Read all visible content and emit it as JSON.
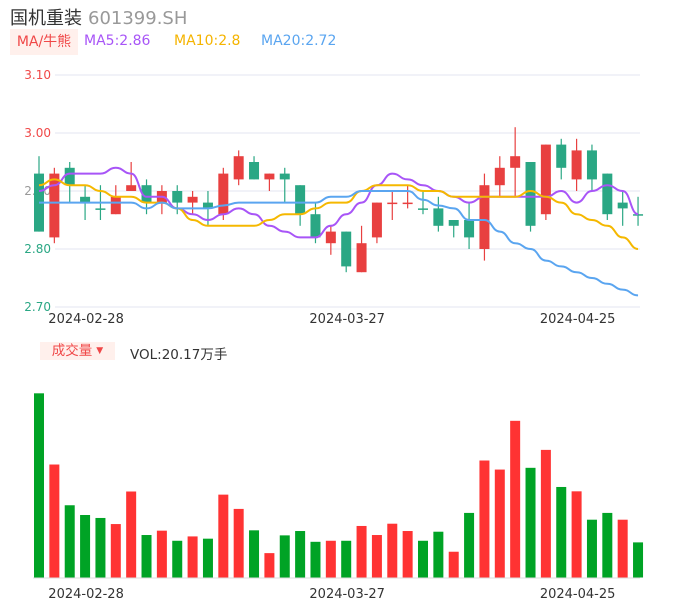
{
  "header": {
    "name": "国机重装",
    "code": "601399.SH"
  },
  "ma_bar": {
    "toggle_label": "MA/牛熊",
    "ma5": "MA5:2.86",
    "ma10": "MA10:2.8",
    "ma20": "MA20:2.72"
  },
  "volume_bar": {
    "toggle_label": "成交量",
    "vol_text": "VOL:20.17万手"
  },
  "colors": {
    "up": "#e84040",
    "down": "#2aa784",
    "vol_up": "#ff3333",
    "vol_down": "#00a325",
    "ma5": "#a855f7",
    "ma10": "#f5b800",
    "ma20": "#5aa5f0",
    "grid": "#e3e6f0"
  },
  "chart_data": [
    {
      "type": "candlestick",
      "y_ticks": [
        {
          "label": "3.10",
          "value": 3.1,
          "color": "#f04848"
        },
        {
          "label": "3.00",
          "value": 3.0,
          "color": "#f04848"
        },
        {
          "label": "2.90",
          "value": 2.9,
          "color": "#999999"
        },
        {
          "label": "2.80",
          "value": 2.8,
          "color": "#2aa784"
        },
        {
          "label": "2.70",
          "value": 2.7,
          "color": "#2aa784"
        }
      ],
      "ylim": [
        2.7,
        3.1
      ],
      "x_ticks": [
        {
          "label": "2024-02-28",
          "index": 3
        },
        {
          "label": "2024-03-27",
          "index": 20
        },
        {
          "label": "2024-04-25",
          "index": 35
        }
      ],
      "candles": [
        [
          2.93,
          2.83,
          2.96,
          2.83
        ],
        [
          2.82,
          2.93,
          2.94,
          2.81
        ],
        [
          2.94,
          2.91,
          2.95,
          2.88
        ],
        [
          2.89,
          2.88,
          2.91,
          2.85
        ],
        [
          2.87,
          2.87,
          2.91,
          2.85
        ],
        [
          2.86,
          2.89,
          2.91,
          2.86
        ],
        [
          2.9,
          2.91,
          2.95,
          2.9
        ],
        [
          2.91,
          2.88,
          2.92,
          2.86
        ],
        [
          2.88,
          2.9,
          2.91,
          2.86
        ],
        [
          2.9,
          2.88,
          2.91,
          2.86
        ],
        [
          2.88,
          2.89,
          2.9,
          2.86
        ],
        [
          2.88,
          2.87,
          2.9,
          2.84
        ],
        [
          2.86,
          2.93,
          2.94,
          2.85
        ],
        [
          2.92,
          2.96,
          2.97,
          2.91
        ],
        [
          2.95,
          2.92,
          2.96,
          2.92
        ],
        [
          2.92,
          2.93,
          2.93,
          2.9
        ],
        [
          2.93,
          2.92,
          2.94,
          2.88
        ],
        [
          2.91,
          2.86,
          2.91,
          2.84
        ],
        [
          2.86,
          2.82,
          2.88,
          2.81
        ],
        [
          2.81,
          2.83,
          2.84,
          2.79
        ],
        [
          2.83,
          2.77,
          2.83,
          2.76
        ],
        [
          2.76,
          2.81,
          2.84,
          2.76
        ],
        [
          2.82,
          2.88,
          2.88,
          2.81
        ],
        [
          2.88,
          2.88,
          2.9,
          2.85
        ],
        [
          2.88,
          2.88,
          2.91,
          2.87
        ],
        [
          2.87,
          2.87,
          2.9,
          2.86
        ],
        [
          2.87,
          2.84,
          2.89,
          2.83
        ],
        [
          2.85,
          2.84,
          2.85,
          2.82
        ],
        [
          2.85,
          2.82,
          2.88,
          2.8
        ],
        [
          2.8,
          2.91,
          2.93,
          2.78
        ],
        [
          2.91,
          2.94,
          2.96,
          2.89
        ],
        [
          2.94,
          2.96,
          3.01,
          2.89
        ],
        [
          2.95,
          2.84,
          2.95,
          2.83
        ],
        [
          2.86,
          2.98,
          2.98,
          2.85
        ],
        [
          2.98,
          2.94,
          2.99,
          2.92
        ],
        [
          2.92,
          2.97,
          2.99,
          2.9
        ],
        [
          2.97,
          2.92,
          2.98,
          2.9
        ],
        [
          2.93,
          2.86,
          2.93,
          2.85
        ],
        [
          2.88,
          2.87,
          2.9,
          2.84
        ],
        [
          2.86,
          2.86,
          2.89,
          2.84
        ]
      ],
      "ma5": [
        2.9,
        2.91,
        2.93,
        2.93,
        2.93,
        2.94,
        2.93,
        2.89,
        2.89,
        2.87,
        2.86,
        2.85,
        2.86,
        2.87,
        2.86,
        2.84,
        2.83,
        2.82,
        2.82,
        2.84,
        2.86,
        2.88,
        2.91,
        2.93,
        2.92,
        2.91,
        2.9,
        2.89,
        2.88,
        2.89,
        2.89,
        2.89,
        2.89,
        2.89,
        2.9,
        2.88,
        2.9,
        2.91,
        2.9,
        2.86
      ],
      "ma10": [
        2.91,
        2.92,
        2.91,
        2.91,
        2.9,
        2.89,
        2.89,
        2.88,
        2.88,
        2.87,
        2.85,
        2.84,
        2.84,
        2.84,
        2.84,
        2.85,
        2.86,
        2.86,
        2.87,
        2.88,
        2.88,
        2.9,
        2.91,
        2.91,
        2.91,
        2.9,
        2.9,
        2.89,
        2.89,
        2.89,
        2.89,
        2.89,
        2.9,
        2.89,
        2.88,
        2.86,
        2.85,
        2.84,
        2.82,
        2.8
      ],
      "ma20": [
        2.88,
        2.88,
        2.88,
        2.88,
        2.88,
        2.88,
        2.88,
        2.87,
        2.88,
        2.87,
        2.87,
        2.87,
        2.875,
        2.88,
        2.88,
        2.88,
        2.88,
        2.88,
        2.88,
        2.89,
        2.89,
        2.9,
        2.9,
        2.9,
        2.9,
        2.885,
        2.875,
        2.87,
        2.85,
        2.85,
        2.83,
        2.81,
        2.8,
        2.78,
        2.77,
        2.76,
        2.75,
        2.74,
        2.73,
        2.72
      ]
    },
    {
      "type": "bar",
      "unit": "万手",
      "ylim": [
        0,
        110
      ],
      "values": [
        105.8,
        64.9,
        41.5,
        35.9,
        34.2,
        30.7,
        49.4,
        24.4,
        26.9,
        21.1,
        23.6,
        22.3,
        47.6,
        39.4,
        27.1,
        14.0,
        24.2,
        26.7,
        20.5,
        21.1,
        21.1,
        29.6,
        24.4,
        30.9,
        26.7,
        21.1,
        26.3,
        14.8,
        37.1,
        67.2,
        62.0,
        90.0,
        63.0,
        73.3,
        52.0,
        49.5,
        33.2,
        37.1,
        33.2,
        20.17
      ],
      "up": [
        0,
        1,
        0,
        0,
        0,
        1,
        1,
        0,
        1,
        0,
        1,
        0,
        1,
        1,
        0,
        1,
        0,
        0,
        0,
        1,
        0,
        1,
        1,
        1,
        1,
        0,
        0,
        1,
        0,
        1,
        1,
        1,
        0,
        1,
        0,
        1,
        0,
        0,
        1,
        0
      ]
    }
  ]
}
